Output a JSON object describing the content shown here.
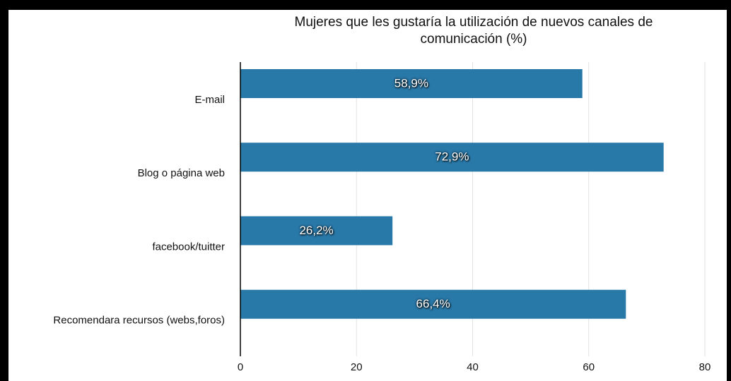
{
  "chart_data": {
    "type": "bar",
    "orientation": "horizontal",
    "title": "Mujeres que les gustaría la utilización de nuevos canales de comunicación (%)",
    "categories": [
      "E-mail",
      "Blog o página web",
      "facebook/tuitter",
      "Recomendara recursos (webs,foros)"
    ],
    "values": [
      58.9,
      72.9,
      26.2,
      66.4
    ],
    "value_labels": [
      "58,9%",
      "72,9%",
      "26,2%",
      "66,4%"
    ],
    "color": "#2878a8",
    "xlim": [
      0,
      80
    ],
    "xticks": [
      0,
      20,
      40,
      60,
      80
    ],
    "grid": true
  }
}
